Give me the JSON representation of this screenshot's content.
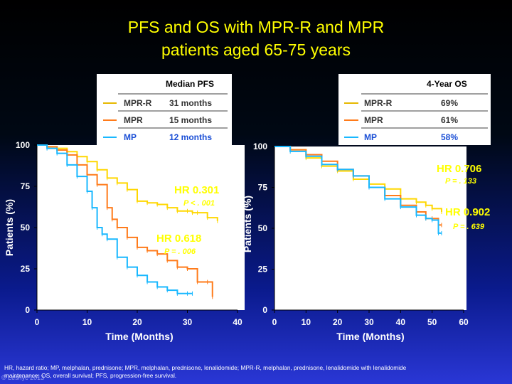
{
  "title": {
    "line1": "PFS and OS with MPR-R and MPR",
    "line2": "patients aged 65-75 years"
  },
  "colors": {
    "mpr_r": "#ffd700",
    "mpr": "#ff7b1a",
    "mp": "#19b8ff",
    "title": "#ffff00",
    "hr_text": "#ffff00"
  },
  "chart_data": [
    {
      "type": "line",
      "title": "Median PFS",
      "xlabel": "Time (Months)",
      "ylabel": "Patients (%)",
      "xlim": [
        0,
        40
      ],
      "ylim": [
        0,
        100
      ],
      "xticks": [
        0,
        10,
        20,
        30,
        40
      ],
      "yticks": [
        0,
        25,
        50,
        75,
        100
      ],
      "legend_title": "Median PFS",
      "legend": [
        {
          "name": "MPR-R",
          "value": "31 months"
        },
        {
          "name": "MPR",
          "value": "15 months"
        },
        {
          "name": "MP",
          "value": "12 months"
        }
      ],
      "annotations": [
        {
          "hr": "HR 0.301",
          "p": "P < . 001"
        },
        {
          "hr": "HR 0.618",
          "p": "P = . 006"
        }
      ],
      "series": [
        {
          "name": "MPR-R",
          "x": [
            0,
            2,
            4,
            6,
            8,
            10,
            12,
            14,
            16,
            18,
            20,
            22,
            24,
            26,
            28,
            30,
            31,
            32,
            34,
            36
          ],
          "y": [
            100,
            99,
            98,
            96,
            93,
            90,
            85,
            80,
            77,
            73,
            66,
            65,
            64,
            62,
            60,
            60,
            59,
            59,
            56,
            54
          ]
        },
        {
          "name": "MPR",
          "x": [
            0,
            2,
            4,
            6,
            8,
            10,
            12,
            14,
            15,
            16,
            18,
            20,
            22,
            24,
            26,
            28,
            30,
            32,
            34,
            35
          ],
          "y": [
            100,
            99,
            97,
            94,
            88,
            82,
            76,
            62,
            55,
            50,
            44,
            38,
            36,
            34,
            30,
            26,
            25,
            17,
            17,
            8
          ]
        },
        {
          "name": "MP",
          "x": [
            0,
            2,
            4,
            6,
            8,
            10,
            11,
            12,
            13,
            14,
            16,
            18,
            20,
            22,
            24,
            26,
            28,
            30,
            31
          ],
          "y": [
            100,
            98,
            95,
            88,
            81,
            72,
            62,
            50,
            46,
            43,
            32,
            26,
            21,
            17,
            14,
            12,
            10,
            10,
            10
          ]
        }
      ]
    },
    {
      "type": "line",
      "title": "4-Year OS",
      "xlabel": "Time (Months)",
      "ylabel": "Patients (%)",
      "xlim": [
        0,
        60
      ],
      "ylim": [
        0,
        100
      ],
      "xticks": [
        0,
        10,
        20,
        30,
        40,
        50,
        60
      ],
      "yticks": [
        0,
        25,
        50,
        75,
        100
      ],
      "legend_title": "4-Year OS",
      "legend": [
        {
          "name": "MPR-R",
          "value": "69%"
        },
        {
          "name": "MPR",
          "value": "61%"
        },
        {
          "name": "MP",
          "value": "58%"
        }
      ],
      "annotations": [
        {
          "hr": "HR 0.706",
          "p": "P = . 133"
        },
        {
          "hr": "HR 0.902",
          "p": "P = . 639"
        }
      ],
      "series": [
        {
          "name": "MPR-R",
          "x": [
            0,
            5,
            10,
            15,
            20,
            25,
            30,
            35,
            40,
            45,
            48,
            50,
            53
          ],
          "y": [
            100,
            98,
            93,
            88,
            85,
            80,
            77,
            74,
            68,
            66,
            64,
            62,
            60
          ]
        },
        {
          "name": "MPR",
          "x": [
            0,
            5,
            10,
            15,
            20,
            25,
            30,
            35,
            40,
            45,
            48,
            50,
            52,
            53
          ],
          "y": [
            100,
            98,
            95,
            91,
            86,
            82,
            75,
            70,
            64,
            60,
            56,
            56,
            52,
            52
          ]
        },
        {
          "name": "MP",
          "x": [
            0,
            5,
            10,
            15,
            20,
            25,
            30,
            35,
            40,
            45,
            48,
            50,
            52,
            53
          ],
          "y": [
            100,
            97,
            94,
            89,
            86,
            82,
            75,
            68,
            63,
            58,
            56,
            55,
            47,
            47
          ]
        }
      ]
    }
  ],
  "footnote": "HR, hazard ratio; MP, melphalan, prednisone; MPR, melphalan, prednisone, lenalidomide; MPR-R, melphalan, prednisone, lenalidomide with lenalidomide maintenance; OS, overall survival; PFS, progression-free survival.",
  "watermark": "© Lesnyc 2013"
}
